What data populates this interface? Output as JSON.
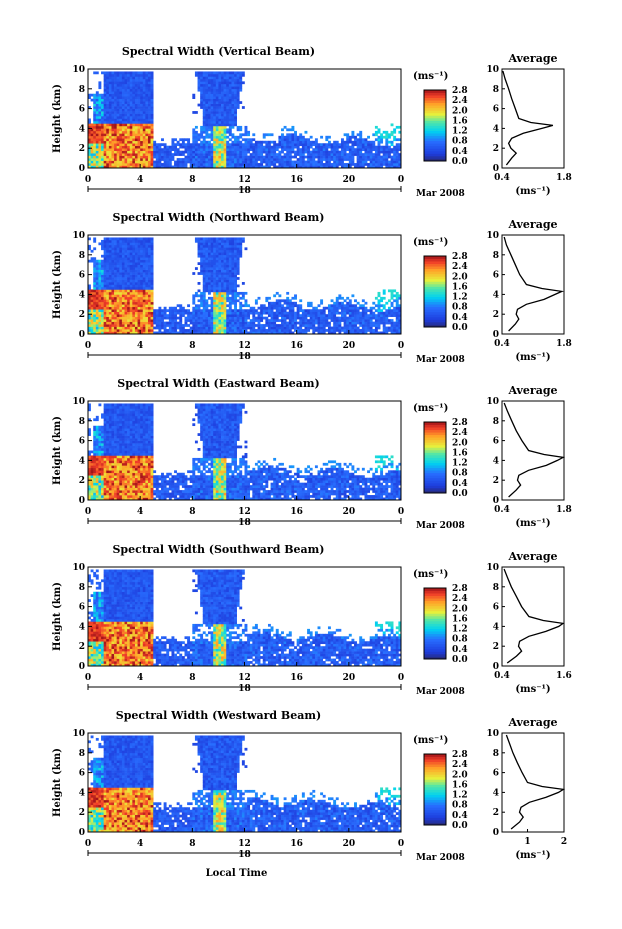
{
  "figure": {
    "xlabel": "Local Time",
    "day_label": "18",
    "month_label": "Mar 2008",
    "avg_title": "Average",
    "unit_label": "(ms⁻¹)",
    "colorbar_ticks": [
      "2.8",
      "2.4",
      "2.0",
      "1.6",
      "1.2",
      "0.8",
      "0.4",
      "0.0"
    ]
  },
  "chart_data": [
    {
      "type": "heatmap",
      "title": "Spectral Width (Vertical Beam)",
      "ylabel": "Height (km)",
      "xlabel": "",
      "xlim": [
        0,
        24
      ],
      "ylim": [
        0,
        10
      ],
      "xticks": [
        "0",
        "4",
        "8",
        "12",
        "16",
        "20",
        "0"
      ],
      "yticks": [
        "0",
        "2",
        "4",
        "6",
        "8",
        "10"
      ],
      "colorbar": {
        "label": "(ms⁻¹)",
        "range": [
          0.0,
          2.8
        ],
        "ticks": [
          "2.8",
          "2.4",
          "2.0",
          "1.6",
          "1.2",
          "0.8",
          "0.4",
          "0.0"
        ]
      },
      "profile": {
        "title": "Average",
        "xlabel": "(ms⁻¹)",
        "xticks": [
          "0.4",
          "1.8"
        ],
        "xlim": [
          0.4,
          1.8
        ],
        "height": [
          0.3,
          1,
          1.5,
          2,
          2.5,
          3,
          3.5,
          4,
          4.3,
          4.6,
          5,
          6,
          7,
          8,
          9,
          9.8
        ],
        "width": [
          0.5,
          0.62,
          0.72,
          0.6,
          0.55,
          0.62,
          0.88,
          1.3,
          1.55,
          1.05,
          0.78,
          0.7,
          0.62,
          0.55,
          0.47,
          0.42
        ]
      }
    },
    {
      "type": "heatmap",
      "title": "Spectral Width (Northward Beam)",
      "ylabel": "Height (km)",
      "xlabel": "",
      "xlim": [
        0,
        24
      ],
      "ylim": [
        0,
        10
      ],
      "xticks": [
        "0",
        "4",
        "8",
        "12",
        "16",
        "20",
        "0"
      ],
      "yticks": [
        "0",
        "2",
        "4",
        "6",
        "8",
        "10"
      ],
      "colorbar": {
        "label": "(ms⁻¹)",
        "range": [
          0.0,
          2.8
        ],
        "ticks": [
          "2.8",
          "2.4",
          "2.0",
          "1.6",
          "1.2",
          "0.8",
          "0.4",
          "0.0"
        ]
      },
      "profile": {
        "title": "Average",
        "xlabel": "(ms⁻¹)",
        "xticks": [
          "0.4",
          "1.8"
        ],
        "xlim": [
          0.4,
          1.8
        ],
        "height": [
          0.3,
          1,
          1.5,
          2,
          2.5,
          3,
          3.5,
          4,
          4.3,
          4.6,
          5,
          6,
          7,
          8,
          9,
          9.8
        ],
        "width": [
          0.55,
          0.7,
          0.78,
          0.72,
          0.75,
          0.95,
          1.35,
          1.6,
          1.75,
          1.3,
          0.95,
          0.8,
          0.7,
          0.6,
          0.5,
          0.45
        ]
      }
    },
    {
      "type": "heatmap",
      "title": "Spectral Width (Eastward Beam)",
      "ylabel": "Height (km)",
      "xlabel": "",
      "xlim": [
        0,
        24
      ],
      "ylim": [
        0,
        10
      ],
      "xticks": [
        "0",
        "4",
        "8",
        "12",
        "16",
        "20",
        "0"
      ],
      "yticks": [
        "0",
        "2",
        "4",
        "6",
        "8",
        "10"
      ],
      "colorbar": {
        "label": "(ms⁻¹)",
        "range": [
          0.0,
          2.8
        ],
        "ticks": [
          "2.8",
          "2.4",
          "2.0",
          "1.6",
          "1.2",
          "0.8",
          "0.4",
          "0.0"
        ]
      },
      "profile": {
        "title": "Average",
        "xlabel": "(ms⁻¹)",
        "xticks": [
          "0.4",
          "1.8"
        ],
        "xlim": [
          0.4,
          1.8
        ],
        "height": [
          0.3,
          1,
          1.5,
          2,
          2.5,
          3,
          3.5,
          4,
          4.3,
          4.6,
          5,
          6,
          7,
          8,
          9,
          9.8
        ],
        "width": [
          0.55,
          0.72,
          0.82,
          0.75,
          0.78,
          1.0,
          1.4,
          1.65,
          1.78,
          1.35,
          1.0,
          0.85,
          0.72,
          0.62,
          0.52,
          0.45
        ]
      }
    },
    {
      "type": "heatmap",
      "title": "Spectral Width (Southward Beam)",
      "ylabel": "Height (km)",
      "xlabel": "",
      "xlim": [
        0,
        24
      ],
      "ylim": [
        0,
        10
      ],
      "xticks": [
        "0",
        "4",
        "8",
        "12",
        "16",
        "20",
        "0"
      ],
      "yticks": [
        "0",
        "2",
        "4",
        "6",
        "8",
        "10"
      ],
      "colorbar": {
        "label": "(ms⁻¹)",
        "range": [
          0.0,
          2.8
        ],
        "ticks": [
          "2.8",
          "2.4",
          "2.0",
          "1.6",
          "1.2",
          "0.8",
          "0.4",
          "0.0"
        ]
      },
      "profile": {
        "title": "Average",
        "xlabel": "(ms⁻¹)",
        "xticks": [
          "0.4",
          "1.6"
        ],
        "xlim": [
          0.4,
          1.6
        ],
        "height": [
          0.3,
          1,
          1.5,
          2,
          2.5,
          3,
          3.5,
          4,
          4.3,
          4.6,
          5,
          6,
          7,
          8,
          9,
          9.8
        ],
        "width": [
          0.5,
          0.68,
          0.78,
          0.72,
          0.74,
          0.92,
          1.25,
          1.5,
          1.58,
          1.2,
          0.92,
          0.78,
          0.68,
          0.58,
          0.5,
          0.44
        ]
      }
    },
    {
      "type": "heatmap",
      "title": "Spectral Width (Westward Beam)",
      "ylabel": "Height (km)",
      "xlabel": "Local Time",
      "xlim": [
        0,
        24
      ],
      "ylim": [
        0,
        10
      ],
      "xticks": [
        "0",
        "4",
        "8",
        "12",
        "16",
        "20",
        "0"
      ],
      "yticks": [
        "0",
        "2",
        "4",
        "6",
        "8",
        "10"
      ],
      "colorbar": {
        "label": "(ms⁻¹)",
        "range": [
          0.0,
          2.8
        ],
        "ticks": [
          "2.8",
          "2.4",
          "2.0",
          "1.6",
          "1.2",
          "0.8",
          "0.4",
          "0.0"
        ]
      },
      "profile": {
        "title": "Average",
        "xlabel": "(ms⁻¹)",
        "xticks": [
          "1",
          "2"
        ],
        "xlim": [
          0.3,
          2.0
        ],
        "height": [
          0.3,
          1,
          1.5,
          2,
          2.5,
          3,
          3.5,
          4,
          4.3,
          4.6,
          5,
          6,
          7,
          8,
          9,
          9.8
        ],
        "width": [
          0.55,
          0.78,
          0.88,
          0.78,
          0.82,
          1.05,
          1.5,
          1.85,
          1.98,
          1.4,
          1.0,
          0.85,
          0.72,
          0.6,
          0.5,
          0.42
        ]
      }
    }
  ]
}
